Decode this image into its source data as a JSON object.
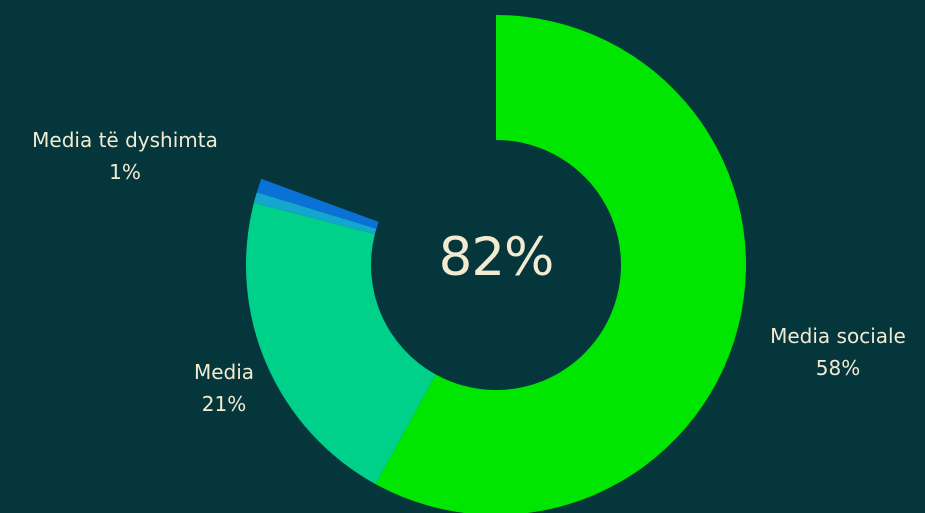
{
  "chart_data": {
    "type": "pie",
    "style": "donut",
    "center_label": "82%",
    "slices": [
      {
        "label": "Media sociale",
        "value_label": "58%",
        "value": 58,
        "color": "#00e600"
      },
      {
        "label": "Media",
        "value_label": "21%",
        "value": 21,
        "color": "#00d18a"
      },
      {
        "label": "",
        "value_label": "",
        "value": 0.7,
        "color": "#14a6cf"
      },
      {
        "label": "Media të dyshimta",
        "value_label": "1%",
        "value": 0.9,
        "color": "#0a72d6"
      }
    ],
    "remainder_color": "#04363b"
  }
}
